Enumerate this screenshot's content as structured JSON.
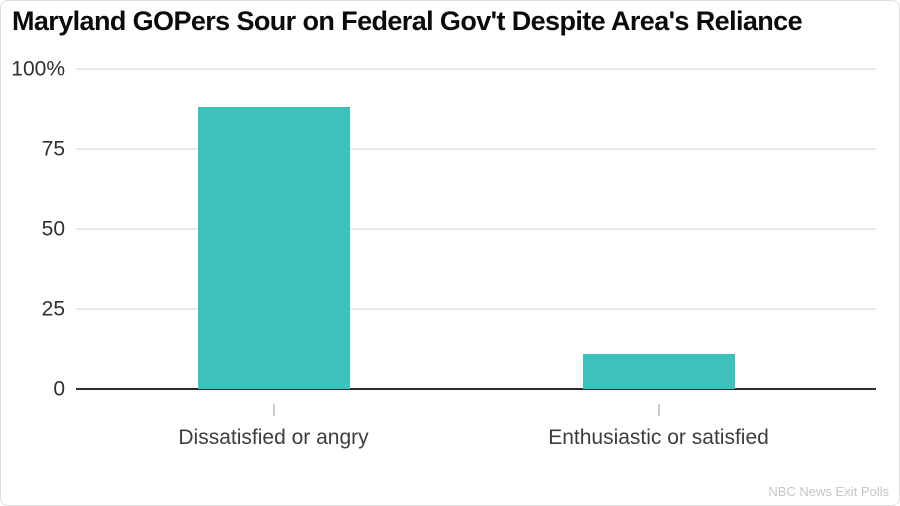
{
  "chart_data": {
    "type": "bar",
    "title": "Maryland GOPers Sour on Federal Gov't Despite Area's Reliance",
    "categories": [
      "Dissatisfied or angry",
      "Enthusiastic or satisfied"
    ],
    "values": [
      88,
      11
    ],
    "ylim": [
      0,
      100
    ],
    "yticks": [
      {
        "value": 100,
        "label": "100%"
      },
      {
        "value": 75,
        "label": "75"
      },
      {
        "value": 50,
        "label": "50"
      },
      {
        "value": 25,
        "label": "25"
      },
      {
        "value": 0,
        "label": "0"
      }
    ],
    "bar_color": "#3cc1bd",
    "grid": true,
    "legend": "none",
    "source": "NBC News Exit Polls"
  }
}
